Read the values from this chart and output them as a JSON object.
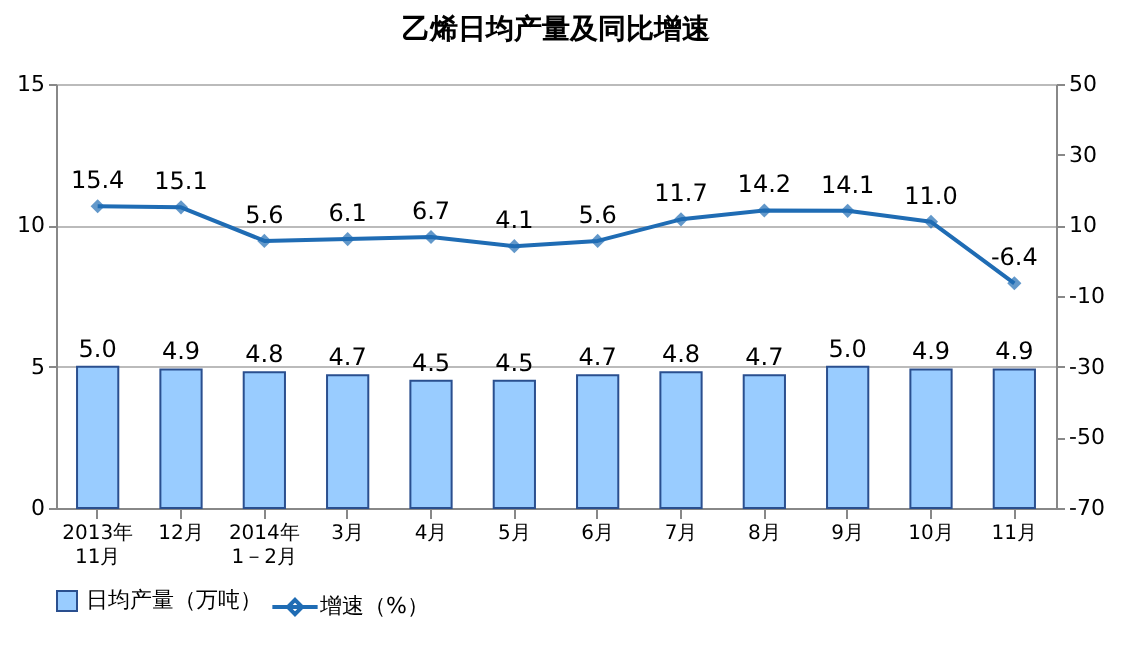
{
  "chart_data": {
    "type": "bar",
    "title": "乙烯日均产量及同比增速",
    "categories": [
      "2013年\n11月",
      "12月",
      "2014年\n1－2月",
      "3月",
      "4月",
      "5月",
      "6月",
      "7月",
      "8月",
      "9月",
      "10月",
      "11月"
    ],
    "series": [
      {
        "name": "日均产量（万吨）",
        "color": "#99ccff",
        "values": [
          5.0,
          4.9,
          4.8,
          4.7,
          4.5,
          4.5,
          4.7,
          4.8,
          4.7,
          5.0,
          4.9,
          4.9
        ],
        "value_labels": [
          "5.0",
          "4.9",
          "4.8",
          "4.7",
          "4.5",
          "4.5",
          "4.7",
          "4.8",
          "4.7",
          "5.0",
          "4.9",
          "4.9"
        ]
      },
      {
        "name": "增速（%）",
        "type": "line",
        "axis": "y2",
        "color": "#1f6cb4",
        "marker": "diamond",
        "line_style": "solid",
        "values": [
          15.4,
          15.1,
          5.6,
          6.1,
          6.7,
          4.1,
          5.6,
          11.7,
          14.2,
          14.1,
          11.0,
          -6.4
        ],
        "value_labels": [
          "15.4",
          "15.1",
          "5.6",
          "6.1",
          "6.7",
          "4.1",
          "5.6",
          "11.7",
          "14.2",
          "14.1",
          "11.0",
          "-6.4"
        ]
      }
    ],
    "ylim": [
      0,
      15
    ],
    "yticks": [
      0,
      5,
      10,
      15
    ],
    "y2lim": [
      -70,
      50
    ],
    "y2ticks": [
      -70,
      -50,
      -30,
      -10,
      10,
      30,
      50
    ],
    "grid": "y",
    "legend": "bottom"
  }
}
